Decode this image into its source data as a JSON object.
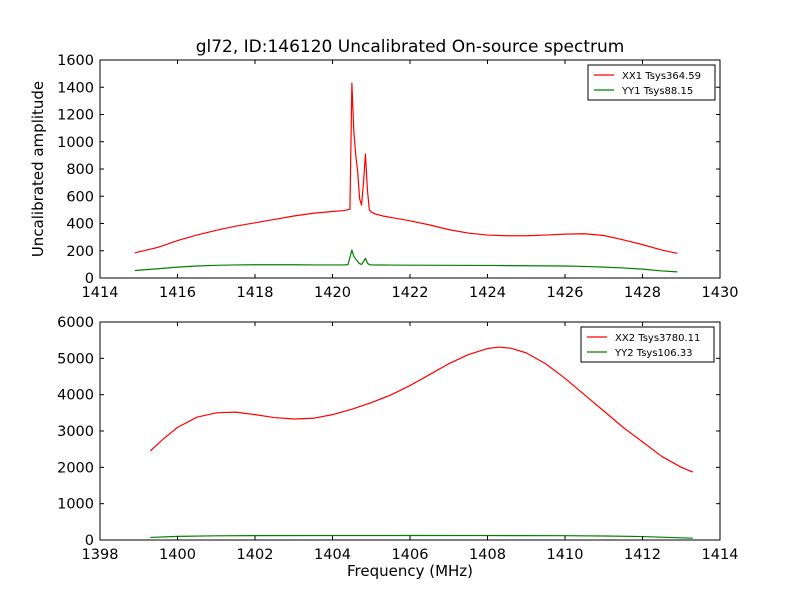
{
  "chart_data": [
    {
      "type": "line",
      "title": "gl72, ID:146120 Uncalibrated On-source spectrum",
      "xlabel": "",
      "ylabel": "Uncalibrated amplitude",
      "xlim": [
        1414,
        1430
      ],
      "ylim": [
        0,
        1600
      ],
      "xticks": [
        1414,
        1416,
        1418,
        1420,
        1422,
        1424,
        1426,
        1428,
        1430
      ],
      "yticks": [
        0,
        200,
        400,
        600,
        800,
        1000,
        1200,
        1400,
        1600
      ],
      "legend_position": "top-right",
      "series": [
        {
          "name": "XX1 Tsys364.59",
          "color": "#ff0000",
          "x": [
            1414.9,
            1415.5,
            1416.0,
            1416.5,
            1417.0,
            1417.5,
            1418.0,
            1418.5,
            1419.0,
            1419.5,
            1420.0,
            1420.3,
            1420.45,
            1420.5,
            1420.55,
            1420.6,
            1420.65,
            1420.7,
            1420.75,
            1420.8,
            1420.85,
            1420.9,
            1420.95,
            1421.0,
            1421.1,
            1421.3,
            1421.6,
            1422.0,
            1422.5,
            1423.0,
            1423.5,
            1424.0,
            1424.5,
            1425.0,
            1425.5,
            1426.0,
            1426.5,
            1427.0,
            1427.5,
            1428.0,
            1428.5,
            1428.9
          ],
          "y": [
            185,
            225,
            275,
            315,
            350,
            380,
            405,
            430,
            455,
            475,
            488,
            495,
            505,
            1430,
            1080,
            900,
            780,
            580,
            535,
            700,
            910,
            650,
            500,
            485,
            470,
            455,
            440,
            420,
            390,
            355,
            330,
            315,
            310,
            310,
            315,
            322,
            325,
            312,
            280,
            245,
            205,
            180
          ]
        },
        {
          "name": "YY1 Tsys88.15",
          "color": "#008000",
          "x": [
            1414.9,
            1415.5,
            1416.0,
            1416.5,
            1417.0,
            1417.5,
            1418.0,
            1418.5,
            1419.0,
            1419.5,
            1420.0,
            1420.3,
            1420.4,
            1420.5,
            1420.55,
            1420.6,
            1420.65,
            1420.7,
            1420.75,
            1420.8,
            1420.85,
            1420.9,
            1420.95,
            1421.0,
            1421.5,
            1422.0,
            1423.0,
            1424.0,
            1425.0,
            1426.0,
            1426.5,
            1427.0,
            1427.5,
            1428.0,
            1428.5,
            1428.9
          ],
          "y": [
            55,
            68,
            80,
            88,
            93,
            96,
            97,
            97,
            97,
            96,
            96,
            96,
            98,
            205,
            160,
            140,
            120,
            105,
            100,
            120,
            145,
            110,
            98,
            96,
            95,
            94,
            93,
            92,
            90,
            88,
            85,
            80,
            74,
            65,
            52,
            45
          ]
        }
      ]
    },
    {
      "type": "line",
      "title": "",
      "xlabel": "Frequency (MHz)",
      "ylabel": "",
      "xlim": [
        1398,
        1414
      ],
      "ylim": [
        0,
        6000
      ],
      "xticks": [
        1398,
        1400,
        1402,
        1404,
        1406,
        1408,
        1410,
        1412,
        1414
      ],
      "yticks": [
        0,
        1000,
        2000,
        3000,
        4000,
        5000,
        6000
      ],
      "legend_position": "top-right",
      "series": [
        {
          "name": "XX2 Tsys3780.11",
          "color": "#ff0000",
          "x": [
            1399.3,
            1399.6,
            1400.0,
            1400.5,
            1401.0,
            1401.5,
            1402.0,
            1402.5,
            1403.0,
            1403.5,
            1404.0,
            1404.5,
            1405.0,
            1405.5,
            1406.0,
            1406.5,
            1407.0,
            1407.5,
            1408.0,
            1408.3,
            1408.6,
            1409.0,
            1409.5,
            1410.0,
            1410.5,
            1411.0,
            1411.5,
            1412.0,
            1412.5,
            1413.0,
            1413.3
          ],
          "y": [
            2450,
            2750,
            3100,
            3380,
            3500,
            3520,
            3450,
            3370,
            3330,
            3350,
            3450,
            3600,
            3780,
            3990,
            4250,
            4550,
            4850,
            5100,
            5270,
            5310,
            5280,
            5150,
            4850,
            4450,
            4000,
            3550,
            3100,
            2700,
            2300,
            2000,
            1870
          ]
        },
        {
          "name": "YY2 Tsys106.33",
          "color": "#008000",
          "x": [
            1399.3,
            1400.0,
            1401.0,
            1402.0,
            1404.0,
            1406.0,
            1408.0,
            1410.0,
            1411.0,
            1412.0,
            1413.3
          ],
          "y": [
            70,
            100,
            115,
            120,
            122,
            123,
            122,
            118,
            110,
            95,
            50
          ]
        }
      ]
    }
  ]
}
